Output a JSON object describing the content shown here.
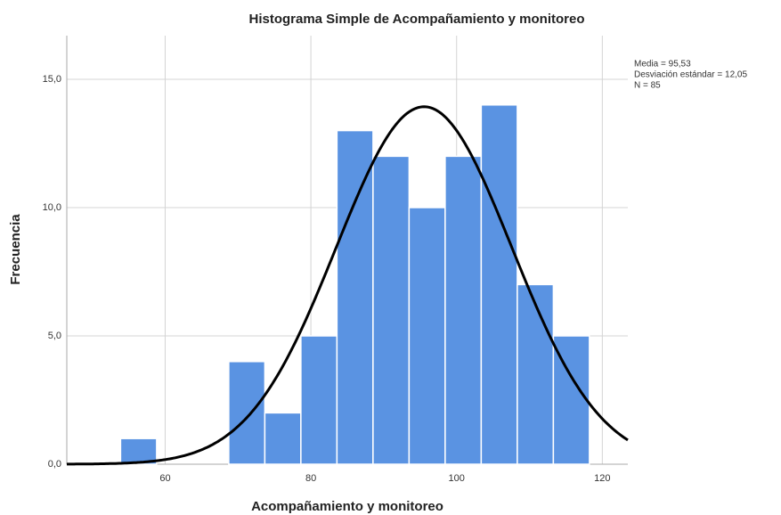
{
  "chart_data": {
    "type": "histogram",
    "title": "Histograma Simple de Acompañamiento y monitoreo",
    "x_label": "Acompañamiento y monitoreo",
    "y_label": "Frecuencia",
    "bins": [
      53.88,
      58.83,
      63.78,
      68.73,
      73.68,
      78.63,
      83.58,
      88.53,
      93.48,
      98.43,
      103.38,
      108.33,
      113.28,
      118.23
    ],
    "values": [
      1,
      0,
      0,
      4,
      2,
      5,
      13,
      12,
      10,
      12,
      14,
      7,
      5
    ],
    "color": "#5a93e2",
    "xlim": [
      46.5,
      123.5
    ],
    "xticks": [
      60,
      80,
      100,
      120
    ],
    "ylim": [
      0,
      16.7
    ],
    "yticks": [
      {
        "value": 0,
        "label": "0,0"
      },
      {
        "value": 5,
        "label": "5,0"
      },
      {
        "value": 10,
        "label": "10,0"
      },
      {
        "value": 15,
        "label": "15,0"
      }
    ],
    "grid": true,
    "stats": {
      "mean": {
        "value": 95.53,
        "label": "Media = 95,53"
      },
      "sd": {
        "value": 12.05,
        "label": "Desviación estándar = 12,05"
      },
      "n": {
        "value": 85,
        "label": "N = 85"
      }
    },
    "curve_color": "#000000"
  }
}
